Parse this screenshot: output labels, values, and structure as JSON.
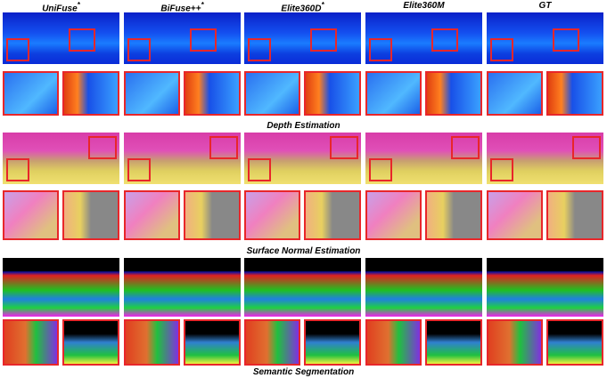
{
  "columns": [
    {
      "name": "UniFuse",
      "mark": "*"
    },
    {
      "name": "BiFuse++",
      "mark": "*"
    },
    {
      "name": "Elite360D",
      "mark": "*"
    },
    {
      "name": "Elite360M"
    },
    {
      "name": "GT"
    }
  ],
  "sections": [
    {
      "caption": "Depth Estimation"
    },
    {
      "caption": "Surface Normal Estimation"
    },
    {
      "caption": "Semantic Segmentation"
    }
  ]
}
